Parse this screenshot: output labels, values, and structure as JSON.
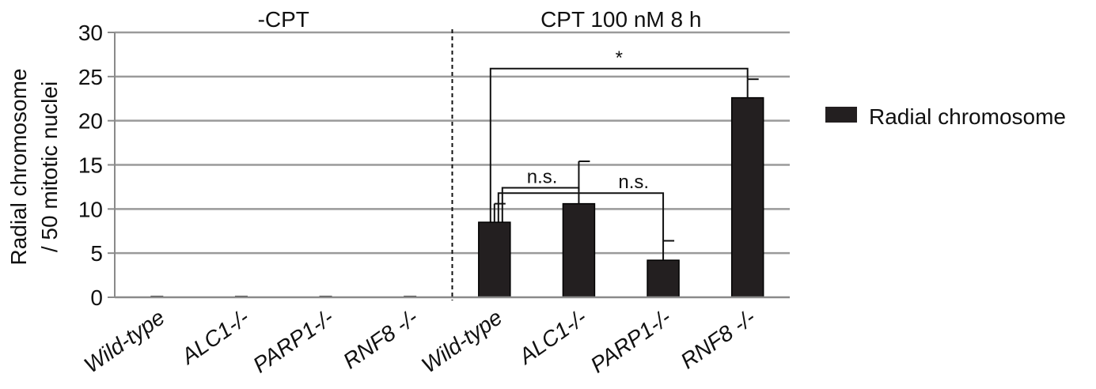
{
  "chart_data": {
    "type": "bar",
    "ylabel_line1": "Radial chromosome",
    "ylabel_line2": "/ 50 mitotic nuclei",
    "ylim": [
      0,
      30
    ],
    "yticks": [
      0,
      5,
      10,
      15,
      20,
      25,
      30
    ],
    "grid": true,
    "legend_position": "right",
    "groups": [
      {
        "label": "-CPT",
        "categories": [
          "Wild-type",
          "ALC1-/-",
          "PARP1-/-",
          "RNF8 -/-"
        ]
      },
      {
        "label": "CPT 100 nM 8 h",
        "categories": [
          "Wild-type",
          "ALC1-/-",
          "PARP1-/-",
          "RNF8 -/-"
        ]
      }
    ],
    "categories": [
      "Wild-type",
      "ALC1-/-",
      "PARP1-/-",
      "RNF8 -/-",
      "Wild-type",
      "ALC1-/-",
      "PARP1-/-",
      "RNF8 -/-"
    ],
    "series": [
      {
        "name": "Radial chromosome",
        "color": "#231f20",
        "values": [
          0,
          0,
          0,
          0,
          8.5,
          10.6,
          4.2,
          22.6
        ],
        "errors": [
          0,
          0,
          0,
          0,
          2.1,
          4.8,
          2.2,
          2.1
        ]
      }
    ],
    "significance": [
      {
        "label": "n.s.",
        "from": 4,
        "to": 5,
        "level": 12.4
      },
      {
        "label": "n.s.",
        "from": 4,
        "to": 6,
        "level": 11.8
      },
      {
        "label": "*",
        "from": 4,
        "to": 7,
        "level": 25.9
      }
    ]
  }
}
